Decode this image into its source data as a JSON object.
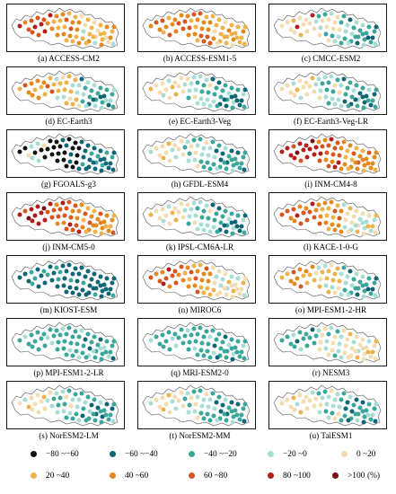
{
  "colors": {
    "c1": "#111111",
    "c2": "#0f6675",
    "c3": "#3aa79a",
    "c4": "#a8ddd6",
    "c5": "#f3ddb0",
    "c6": "#efb24a",
    "c7": "#e38a1e",
    "c8": "#d6561f",
    "c9": "#b51c1c",
    "c10": "#7a1010"
  },
  "panels": [
    {
      "caption": "(a) ACCESS-CM2",
      "scheme": "east_orange_west_red"
    },
    {
      "caption": "(b) ACCESS-ESM1-5",
      "scheme": "all_orange"
    },
    {
      "caption": "(c) CMCC-ESM2",
      "scheme": "east_teal"
    },
    {
      "caption": "(d) EC-Earth3",
      "scheme": "east_teal_west_orange"
    },
    {
      "caption": "(e) EC-Earth3-Veg",
      "scheme": "east_teal_west_beige"
    },
    {
      "caption": "(f) EC-Earth3-Veg-LR",
      "scheme": "east_teal_west_beige"
    },
    {
      "caption": "(g) FGOALS-g3",
      "scheme": "black_dark"
    },
    {
      "caption": "(h) GFDL-ESM4",
      "scheme": "east_teal_west_beige"
    },
    {
      "caption": "(i) INM-CM4-8",
      "scheme": "red_orange"
    },
    {
      "caption": "(j) INM-CM5-0",
      "scheme": "red_orange"
    },
    {
      "caption": "(k) IPSL-CM6A-LR",
      "scheme": "east_teal_west_beige"
    },
    {
      "caption": "(l) KACE-1-0-G",
      "scheme": "orange_red_mix"
    },
    {
      "caption": "(m) KIOST-ESM",
      "scheme": "all_dark_teal"
    },
    {
      "caption": "(n) MIROC6",
      "scheme": "orange_red_mix"
    },
    {
      "caption": "(o) MPI-ESM1-2-HR",
      "scheme": "east_teal_west_orange"
    },
    {
      "caption": "(p) MPI-ESM1-2-LR",
      "scheme": "all_teal"
    },
    {
      "caption": "(q) MRI-ESM2-0",
      "scheme": "all_teal"
    },
    {
      "caption": "(r) NESM3",
      "scheme": "east_beige_west_teal"
    },
    {
      "caption": "(s) NorESM2-LM",
      "scheme": "east_teal_west_beige"
    },
    {
      "caption": "(t) NorESM2-MM",
      "scheme": "east_teal_west_beige"
    },
    {
      "caption": "(u) TaiESM1",
      "scheme": "east_teal_west_beige"
    }
  ],
  "legend": {
    "items": [
      {
        "label": "−80 ~−60",
        "color_key": "c1"
      },
      {
        "label": "−60 ~−40",
        "color_key": "c2"
      },
      {
        "label": "−40 ~−20",
        "color_key": "c3"
      },
      {
        "label": "−20 ~0",
        "color_key": "c4"
      },
      {
        "label": "0 ~20",
        "color_key": "c5"
      },
      {
        "label": "20 ~40",
        "color_key": "c6"
      },
      {
        "label": "40 ~60",
        "color_key": "c7"
      },
      {
        "label": "60 ~80",
        "color_key": "c8"
      },
      {
        "label": "80 ~100",
        "color_key": "c9"
      },
      {
        "label": ">100",
        "color_key": "c10"
      }
    ],
    "unit": "(%)"
  }
}
